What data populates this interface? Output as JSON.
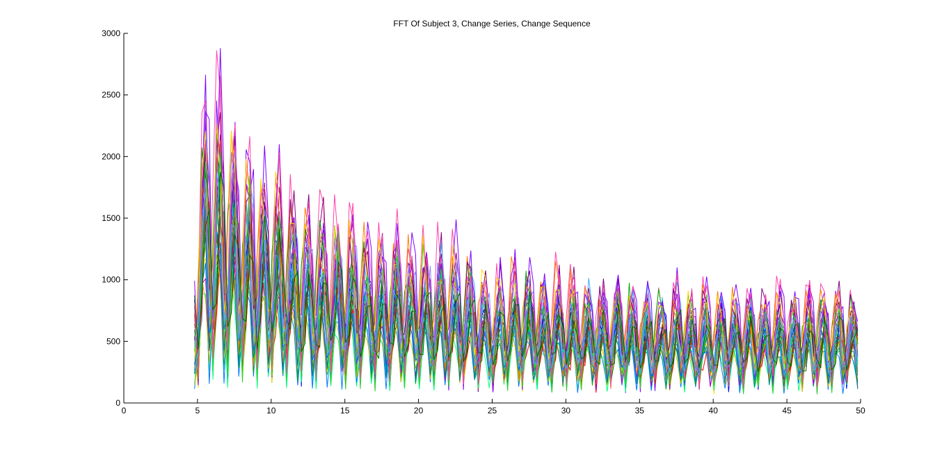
{
  "chart_data": {
    "type": "line",
    "title": "FFT Of Subject 3, Change Series, Change Sequence",
    "xlabel": "",
    "ylabel": "",
    "xlim": [
      0,
      50
    ],
    "ylim": [
      0,
      3000
    ],
    "xticks": [
      0,
      5,
      10,
      15,
      20,
      25,
      30,
      35,
      40,
      45,
      50
    ],
    "yticks": [
      0,
      500,
      1000,
      1500,
      2000,
      2500,
      3000
    ],
    "grid": false,
    "legend": "none",
    "x_start": 4.8,
    "x_end": 50,
    "x_step": 0.25,
    "envelope_x": [
      4.8,
      5.5,
      6.5,
      7.5,
      8.5,
      9.5,
      10.5,
      11.5,
      12.5,
      13.5,
      14.5,
      15.5,
      16.5,
      17.5,
      18.5,
      19.5,
      20.5,
      21.5,
      22.5,
      23.5,
      24.5,
      25.5,
      26.5,
      27.5,
      28.5,
      29.5,
      30.5,
      31.5,
      32.5,
      33.5,
      34.5,
      35.5,
      36.5,
      37.5,
      38.5,
      39.5,
      40.5,
      41.5,
      42.5,
      43.5,
      44.5,
      45.5,
      46.5,
      47.5,
      48.5,
      49.5,
      50
    ],
    "envelope_peak": [
      1100,
      2600,
      2450,
      2250,
      2000,
      1950,
      1900,
      1700,
      1550,
      1600,
      1450,
      1450,
      1350,
      1250,
      1400,
      1250,
      1250,
      1250,
      1200,
      1150,
      1000,
      1000,
      1050,
      1050,
      950,
      1000,
      950,
      900,
      900,
      950,
      900,
      850,
      850,
      900,
      850,
      850,
      850,
      850,
      850,
      850,
      850,
      850,
      850,
      850,
      850,
      850,
      850
    ],
    "series_count": 40,
    "series_colors": [
      "#0000ff",
      "#00aa00",
      "#ff0000",
      "#00bfbf",
      "#bf00bf",
      "#bfbf00",
      "#404040",
      "#7f00ff",
      "#ff7f00",
      "#00ff7f",
      "#007f7f",
      "#7f007f",
      "#ffdd00",
      "#0077ff",
      "#aa4400",
      "#33cc33",
      "#ff44aa",
      "#44aaff",
      "#8888ff",
      "#006600"
    ]
  }
}
